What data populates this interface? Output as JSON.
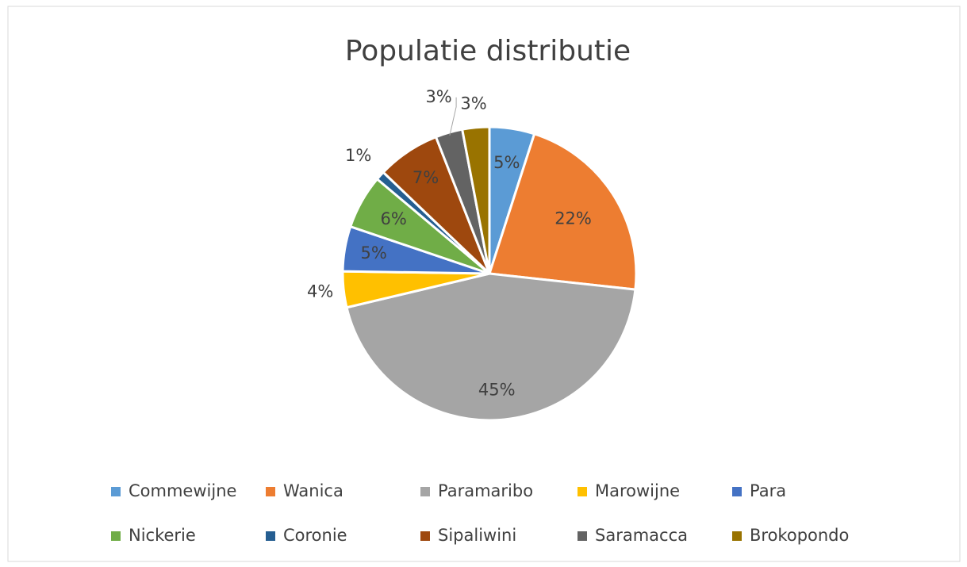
{
  "chart_data": {
    "type": "pie",
    "title": "Populatie distributie",
    "categories": [
      "Commewijne",
      "Wanica",
      "Paramaribo",
      "Marowijne",
      "Para",
      "Nickerie",
      "Coronie",
      "Sipaliwini",
      "Saramacca",
      "Brokopondo"
    ],
    "values": [
      5,
      22,
      45,
      4,
      5,
      6,
      1,
      7,
      3,
      3
    ],
    "value_labels": [
      "5%",
      "22%",
      "45%",
      "4%",
      "5%",
      "6%",
      "1%",
      "7%",
      "3%",
      "3%"
    ],
    "colors": [
      "#5b9bd5",
      "#ed7d31",
      "#a5a5a5",
      "#ffc000",
      "#4472c4",
      "#70ad47",
      "#255e91",
      "#9e480e",
      "#636363",
      "#997300"
    ],
    "legend": "bottom"
  }
}
